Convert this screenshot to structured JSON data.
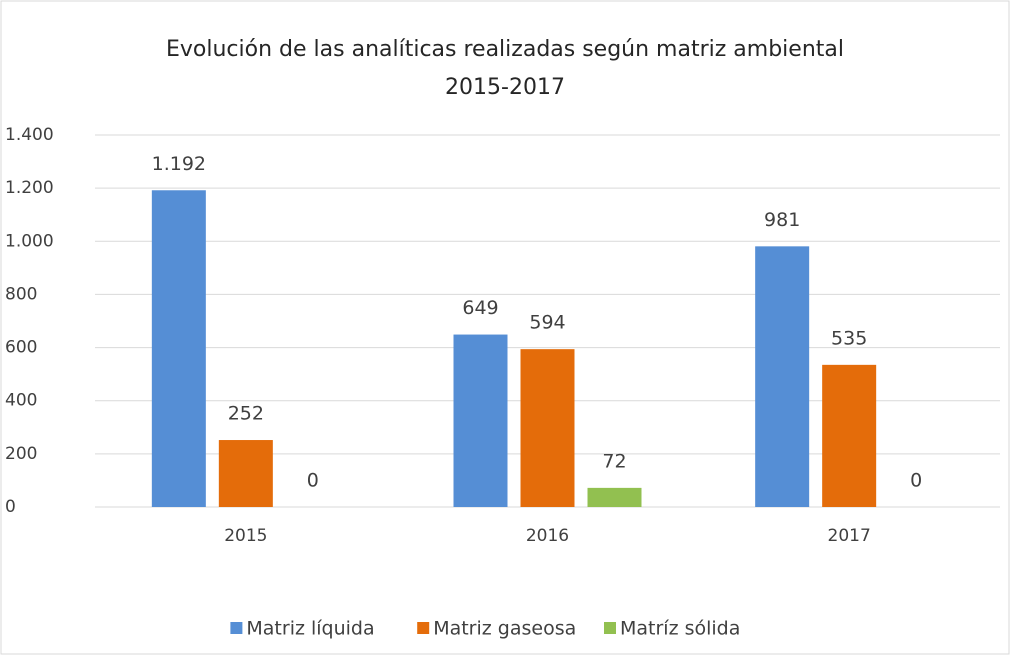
{
  "chart_data": {
    "type": "bar",
    "title": "Evolución de las analíticas realizadas según matriz ambiental",
    "subtitle": "2015-2017",
    "categories": [
      "2015",
      "2016",
      "2017"
    ],
    "series": [
      {
        "name": "Matriz líquida",
        "color": "#558ed5",
        "values": [
          1192,
          649,
          981
        ],
        "value_labels": [
          "1.192",
          "649",
          "981"
        ]
      },
      {
        "name": "Matriz gaseosa",
        "color": "#e46c0a",
        "values": [
          252,
          594,
          535
        ]
      },
      {
        "name": "Matríz sólida",
        "color": "#92c050",
        "values": [
          0,
          72,
          0
        ]
      }
    ],
    "ylim": [
      0,
      1400
    ],
    "yticks": [
      0,
      200,
      400,
      600,
      800,
      {
        "value": 1000,
        "label": "1.000"
      },
      {
        "value": 1200,
        "label": "1.200"
      },
      {
        "value": 1400,
        "label": "1.400"
      }
    ],
    "grid": true,
    "legend": "bottom"
  }
}
